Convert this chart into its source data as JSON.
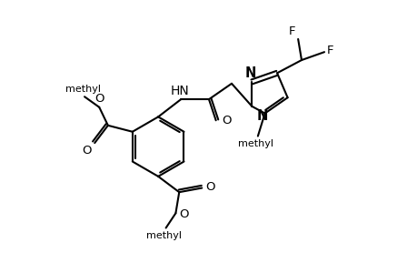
{
  "bg_color": "#ffffff",
  "bond_color": "#000000",
  "bond_width": 1.5,
  "font_size": 9.5,
  "lw": 1.5,
  "figw": 4.6,
  "figh": 3.0,
  "dpi": 100,
  "xlim": [
    0,
    9.2
  ],
  "ylim": [
    0,
    6.0
  ]
}
